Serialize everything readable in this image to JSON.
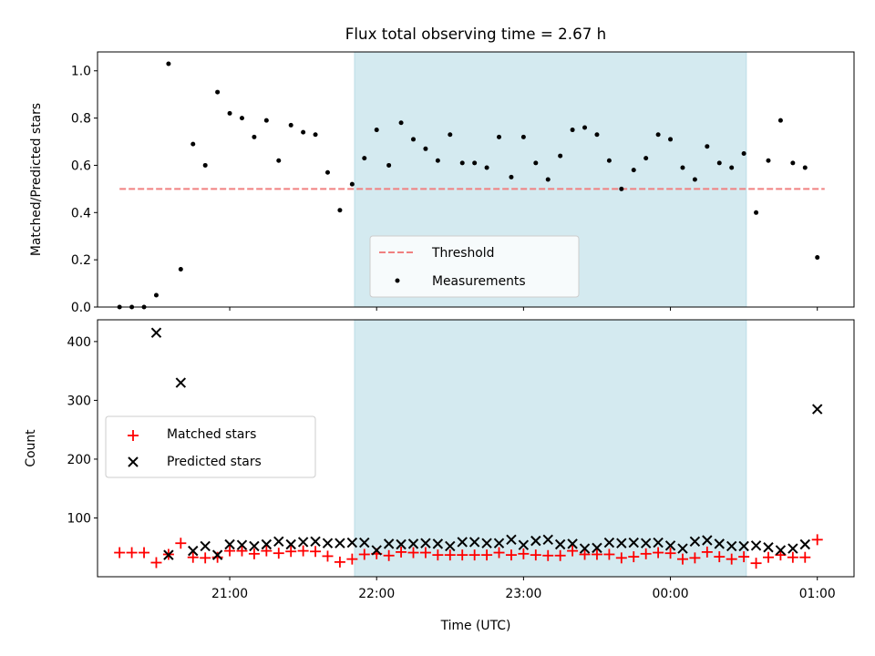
{
  "chart_data": [
    {
      "type": "scatter",
      "title": "Flux total observing time = 2.67 h",
      "xlabel": "",
      "ylabel": "Matched/Predicted stars",
      "ylim": [
        0,
        1.08
      ],
      "yticks": [
        "0.0",
        "0.2",
        "0.4",
        "0.6",
        "0.8",
        "1.0"
      ],
      "xlim": [
        "20:06",
        "01:15"
      ],
      "shaded_region": {
        "x_start": "21:51",
        "x_end": "00:31",
        "color": "#d4eaf0"
      },
      "threshold": {
        "name": "Threshold",
        "value": 0.5,
        "x_start": "20:15",
        "x_end": "01:03",
        "color": "#f08080"
      },
      "legend": {
        "placement": "lower-center",
        "entries": [
          "Threshold",
          "Measurements"
        ]
      },
      "series": [
        {
          "name": "Measurements",
          "marker": "dot",
          "color": "#000000",
          "x": [
            "20:15",
            "20:20",
            "20:25",
            "20:30",
            "20:35",
            "20:40",
            "20:45",
            "20:50",
            "20:55",
            "21:00",
            "21:05",
            "21:10",
            "21:15",
            "21:20",
            "21:25",
            "21:30",
            "21:35",
            "21:40",
            "21:45",
            "21:50",
            "21:55",
            "22:00",
            "22:05",
            "22:10",
            "22:15",
            "22:20",
            "22:25",
            "22:30",
            "22:35",
            "22:40",
            "22:45",
            "22:50",
            "22:55",
            "23:00",
            "23:05",
            "23:10",
            "23:15",
            "23:20",
            "23:25",
            "23:30",
            "23:35",
            "23:40",
            "23:45",
            "23:50",
            "23:55",
            "00:00",
            "00:05",
            "00:10",
            "00:15",
            "00:20",
            "00:25",
            "00:30",
            "00:35",
            "00:40",
            "00:45",
            "00:50",
            "00:55",
            "01:00"
          ],
          "y": [
            0.0,
            0.0,
            0.0,
            0.05,
            1.03,
            0.16,
            0.69,
            0.6,
            0.91,
            0.82,
            0.8,
            0.72,
            0.79,
            0.62,
            0.77,
            0.74,
            0.73,
            0.57,
            0.41,
            0.52,
            0.63,
            0.75,
            0.6,
            0.78,
            0.71,
            0.67,
            0.62,
            0.73,
            0.61,
            0.61,
            0.59,
            0.72,
            0.55,
            0.72,
            0.61,
            0.54,
            0.64,
            0.75,
            0.76,
            0.73,
            0.62,
            0.5,
            0.58,
            0.63,
            0.73,
            0.71,
            0.59,
            0.54,
            0.68,
            0.61,
            0.59,
            0.65,
            0.4,
            0.62,
            0.79,
            0.61,
            0.59,
            0.21
          ]
        }
      ]
    },
    {
      "type": "scatter",
      "title": "",
      "xlabel": "Time (UTC)",
      "ylabel": "Count",
      "ylim": [
        0,
        437
      ],
      "yticks": [
        "100",
        "200",
        "300",
        "400"
      ],
      "xlim": [
        "20:06",
        "01:15"
      ],
      "xticks": [
        "21:00",
        "22:00",
        "23:00",
        "00:00",
        "01:00"
      ],
      "shaded_region": {
        "x_start": "21:51",
        "x_end": "00:31",
        "color": "#d4eaf0"
      },
      "legend": {
        "placement": "center-left",
        "entries": [
          "Matched stars",
          "Predicted stars"
        ]
      },
      "series": [
        {
          "name": "Matched stars",
          "marker": "plus",
          "color": "#ff0000",
          "x": [
            "20:15",
            "20:20",
            "20:25",
            "20:30",
            "20:35",
            "20:40",
            "20:45",
            "20:50",
            "20:55",
            "21:00",
            "21:05",
            "21:10",
            "21:15",
            "21:20",
            "21:25",
            "21:30",
            "21:35",
            "21:40",
            "21:45",
            "21:50",
            "21:55",
            "22:00",
            "22:05",
            "22:10",
            "22:15",
            "22:20",
            "22:25",
            "22:30",
            "22:35",
            "22:40",
            "22:45",
            "22:50",
            "22:55",
            "23:00",
            "23:05",
            "23:10",
            "23:15",
            "23:20",
            "23:25",
            "23:30",
            "23:35",
            "23:40",
            "23:45",
            "23:50",
            "23:55",
            "00:00",
            "00:05",
            "00:10",
            "00:15",
            "00:20",
            "00:25",
            "00:30",
            "00:35",
            "00:40",
            "00:45",
            "00:50",
            "00:55",
            "01:00"
          ],
          "y": [
            41,
            41,
            41,
            24,
            38,
            57,
            33,
            32,
            33,
            44,
            44,
            39,
            44,
            40,
            43,
            44,
            43,
            35,
            25,
            30,
            38,
            39,
            36,
            42,
            41,
            41,
            37,
            37,
            37,
            37,
            37,
            41,
            37,
            39,
            37,
            36,
            36,
            44,
            38,
            38,
            38,
            32,
            34,
            39,
            41,
            40,
            30,
            32,
            42,
            34,
            30,
            34,
            23,
            33,
            37,
            33,
            33,
            63
          ]
        },
        {
          "name": "Predicted stars",
          "marker": "x",
          "color": "#000000",
          "x": [
            "20:15",
            "20:20",
            "20:25",
            "20:30",
            "20:35",
            "20:40",
            "20:45",
            "20:50",
            "20:55",
            "21:00",
            "21:05",
            "21:10",
            "21:15",
            "21:20",
            "21:25",
            "21:30",
            "21:35",
            "21:40",
            "21:45",
            "21:50",
            "21:55",
            "22:00",
            "22:05",
            "22:10",
            "22:15",
            "22:20",
            "22:25",
            "22:30",
            "22:35",
            "22:40",
            "22:45",
            "22:50",
            "22:55",
            "23:00",
            "23:05",
            "23:10",
            "23:15",
            "23:20",
            "23:25",
            "23:30",
            "23:35",
            "23:40",
            "23:45",
            "23:50",
            "23:55",
            "00:00",
            "00:05",
            "00:10",
            "00:15",
            "00:20",
            "00:25",
            "00:30",
            "00:35",
            "00:40",
            "00:45",
            "00:50",
            "00:55",
            "01:00"
          ],
          "y": [
            null,
            null,
            null,
            415,
            37,
            330,
            44,
            52,
            37,
            55,
            54,
            52,
            55,
            60,
            55,
            59,
            60,
            57,
            57,
            58,
            58,
            45,
            56,
            55,
            56,
            57,
            56,
            52,
            59,
            59,
            57,
            57,
            63,
            54,
            61,
            63,
            55,
            56,
            48,
            49,
            58,
            57,
            58,
            57,
            58,
            53,
            48,
            60,
            62,
            56,
            52,
            52,
            53,
            50,
            45,
            48,
            55,
            285
          ]
        }
      ]
    }
  ]
}
